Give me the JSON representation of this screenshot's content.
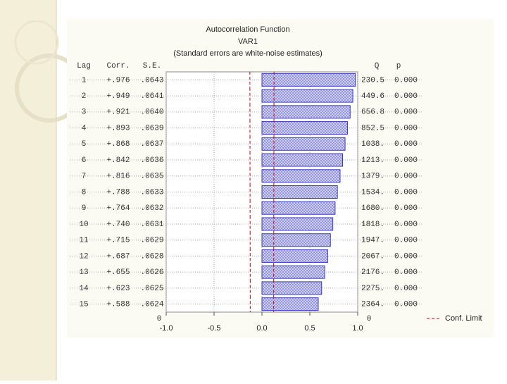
{
  "chart_data": {
    "type": "acf",
    "title": "Autocorrelation Function",
    "subtitle": "VAR1",
    "note": "(Standard errors are white-noise estimates)",
    "column_headers": {
      "lag": "Lag",
      "corr": "Corr.",
      "se": "S.E.",
      "q": "Q",
      "p": "p"
    },
    "categories": [
      "1",
      "2",
      "3",
      "4",
      "5",
      "6",
      "7",
      "8",
      "9",
      "10",
      "11",
      "12",
      "13",
      "14",
      "15"
    ],
    "values": [
      0.976,
      0.949,
      0.921,
      0.893,
      0.868,
      0.842,
      0.816,
      0.788,
      0.764,
      0.74,
      0.715,
      0.687,
      0.655,
      0.623,
      0.588
    ],
    "value_labels": [
      "+.976",
      "+.949",
      "+.921",
      "+.893",
      "+.868",
      "+.842",
      "+.816",
      "+.788",
      "+.764",
      "+.740",
      "+.715",
      "+.687",
      "+.655",
      "+.623",
      "+.588"
    ],
    "se": [
      ".0643",
      ".0641",
      ".0640",
      ".0639",
      ".0637",
      ".0636",
      ".0635",
      ".0633",
      ".0632",
      ".0631",
      ".0629",
      ".0628",
      ".0626",
      ".0625",
      ".0624"
    ],
    "q": [
      "230.5",
      "449.6",
      "656.8",
      "852.5",
      "1038.",
      "1213.",
      "1379.",
      "1534.",
      "1680.",
      "1818.",
      "1947.",
      "2067.",
      "2176.",
      "2275.",
      "2364."
    ],
    "p": [
      "0.000",
      "0.000",
      "0.000",
      "0.000",
      "0.000",
      "0.000",
      "0.000",
      "0.000",
      "0.000",
      "0.000",
      "0.000",
      "0.000",
      "0.000",
      "0.000",
      "0.000"
    ],
    "conf_lower": [
      -0.126,
      -0.1256,
      -0.1254,
      -0.1252,
      -0.1249,
      -0.1247,
      -0.1245,
      -0.1241,
      -0.1239,
      -0.1237,
      -0.1233,
      -0.1231,
      -0.1227,
      -0.1225,
      -0.1223
    ],
    "conf_upper": [
      0.126,
      0.1256,
      0.1254,
      0.1252,
      0.1249,
      0.1247,
      0.1245,
      0.1241,
      0.1239,
      0.1237,
      0.1233,
      0.1231,
      0.1227,
      0.1225,
      0.1223
    ],
    "lag_axis_end": "0",
    "q_axis_end": "0",
    "legend": "Conf. Limit",
    "color": "#3a3ac8",
    "conf_color": "#cc0000",
    "xlim": [
      -1.0,
      1.0
    ],
    "xticks": [
      {
        "value": -1.0,
        "label": "-1.0"
      },
      {
        "value": -0.5,
        "label": "-0.5"
      },
      {
        "value": 0,
        "label": "0.0"
      },
      {
        "value": 0.5,
        "label": "0.5"
      },
      {
        "value": 1.0,
        "label": "1.0"
      }
    ],
    "grid": true
  }
}
